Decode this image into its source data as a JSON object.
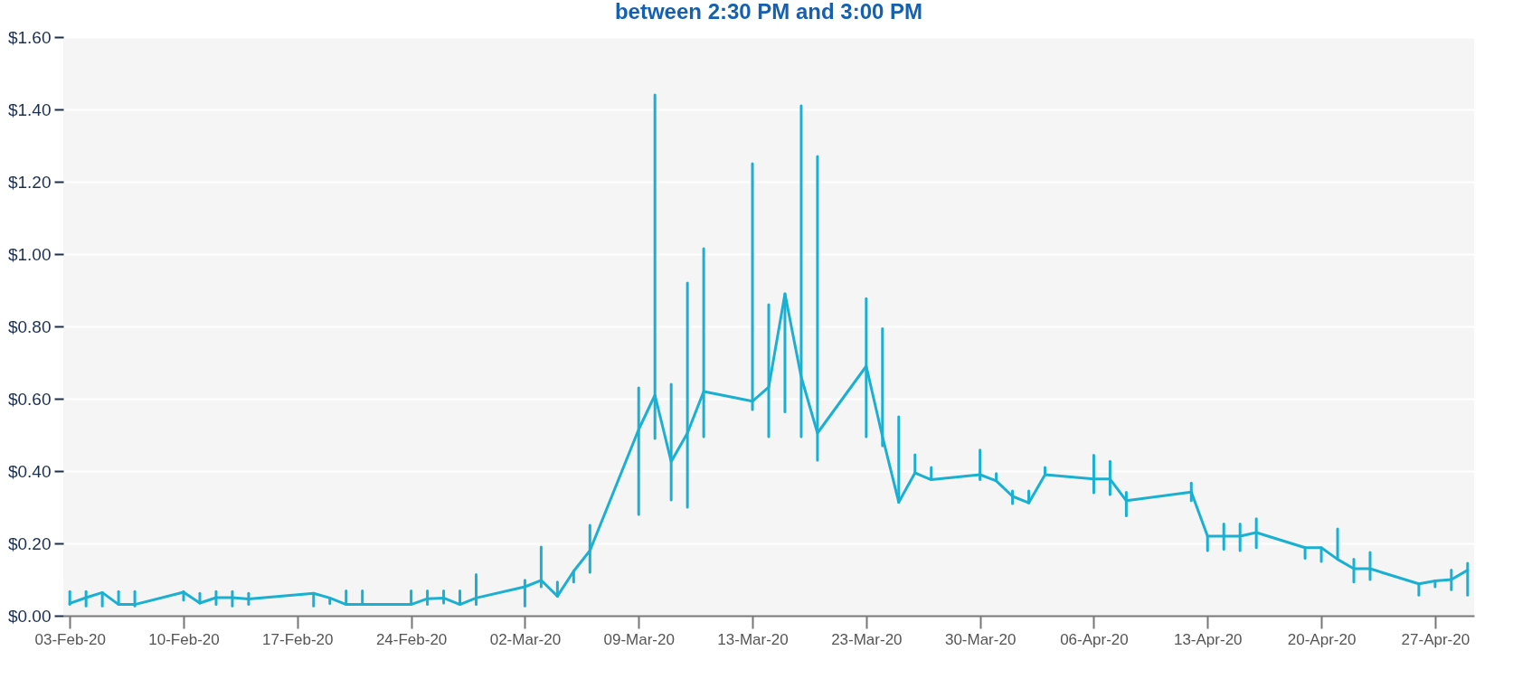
{
  "chart_data": {
    "type": "line",
    "title": "between 2:30 PM and 3:00 PM",
    "categories": [
      "03-Feb-20",
      null,
      null,
      null,
      null,
      null,
      null,
      "10-Feb-20",
      null,
      null,
      null,
      null,
      null,
      null,
      "17-Feb-20",
      null,
      null,
      null,
      null,
      null,
      null,
      "24-Feb-20",
      null,
      null,
      null,
      null,
      null,
      null,
      "02-Mar-20",
      null,
      null,
      null,
      null,
      null,
      null,
      "09-Mar-20",
      null,
      null,
      null,
      null,
      null,
      null,
      "13-Mar-20",
      null,
      null,
      null,
      null,
      null,
      null,
      "23-Mar-20",
      null,
      null,
      null,
      null,
      null,
      null,
      "30-Mar-20",
      null,
      null,
      null,
      null,
      null,
      null,
      "06-Apr-20",
      null,
      null,
      null,
      null,
      null,
      null,
      "13-Apr-20",
      null,
      null,
      null,
      null,
      null,
      null,
      "20-Apr-20",
      null,
      null,
      null,
      null,
      null,
      null,
      "27-Apr-20",
      null,
      null
    ],
    "series": [
      {
        "color": "#1ab0d2",
        "values": [
          0.034,
          0.05,
          0.064,
          0.031,
          0.031,
          null,
          null,
          0.065,
          0.035,
          0.05,
          0.05,
          0.046,
          null,
          null,
          null,
          0.062,
          0.049,
          0.031,
          0.031,
          null,
          null,
          0.031,
          0.047,
          0.049,
          0.031,
          0.049,
          null,
          null,
          0.08,
          0.098,
          0.054,
          0.123,
          0.18,
          null,
          null,
          0.515,
          0.61,
          0.426,
          0.505,
          0.62,
          null,
          null,
          0.593,
          0.632,
          0.89,
          0.66,
          0.505,
          null,
          null,
          0.69,
          0.495,
          0.314,
          0.395,
          0.376,
          null,
          null,
          0.39,
          0.373,
          0.33,
          0.312,
          0.39,
          null,
          null,
          0.378,
          0.378,
          0.318,
          null,
          null,
          null,
          0.342,
          0.22,
          0.22,
          0.22,
          0.23,
          null,
          null,
          0.188,
          0.188,
          0.156,
          0.13,
          0.13,
          null,
          null,
          0.088,
          0.096,
          0.1,
          0.126
        ],
        "errors": [
          [
            0.031,
            0.067
          ],
          [
            0.027,
            0.067
          ],
          [
            0.027,
            0.064
          ],
          [
            0.031,
            0.067
          ],
          [
            0.027,
            0.067
          ],
          null,
          null,
          [
            0.043,
            0.067
          ],
          [
            0.035,
            0.062
          ],
          [
            0.031,
            0.067
          ],
          [
            0.027,
            0.067
          ],
          [
            0.031,
            0.062
          ],
          null,
          null,
          null,
          [
            0.027,
            0.062
          ],
          [
            0.034,
            0.049
          ],
          [
            0.031,
            0.069
          ],
          [
            0.031,
            0.069
          ],
          null,
          null,
          [
            0.031,
            0.069
          ],
          [
            0.031,
            0.069
          ],
          [
            0.035,
            0.069
          ],
          [
            0.031,
            0.069
          ],
          [
            0.031,
            0.114
          ],
          null,
          null,
          [
            0.027,
            0.098
          ],
          [
            0.08,
            0.19
          ],
          [
            0.054,
            0.093
          ],
          [
            0.093,
            0.123
          ],
          [
            0.12,
            0.25
          ],
          null,
          null,
          [
            0.28,
            0.63
          ],
          [
            0.49,
            1.44
          ],
          [
            0.32,
            0.64
          ],
          [
            0.3,
            0.92
          ],
          [
            0.495,
            1.015
          ],
          null,
          null,
          [
            0.57,
            1.25
          ],
          [
            0.495,
            0.86
          ],
          [
            0.564,
            0.89
          ],
          [
            0.495,
            1.41
          ],
          [
            0.43,
            1.27
          ],
          null,
          null,
          [
            0.495,
            0.877
          ],
          [
            0.47,
            0.794
          ],
          [
            0.314,
            0.55
          ],
          [
            0.395,
            0.445
          ],
          [
            0.376,
            0.41
          ],
          null,
          null,
          [
            0.376,
            0.458
          ],
          [
            0.373,
            0.393
          ],
          [
            0.31,
            0.345
          ],
          [
            0.312,
            0.345
          ],
          [
            0.39,
            0.41
          ],
          null,
          null,
          [
            0.34,
            0.444
          ],
          [
            0.335,
            0.427
          ],
          [
            0.276,
            0.341
          ],
          null,
          null,
          null,
          [
            0.318,
            0.367
          ],
          [
            0.18,
            0.22
          ],
          [
            0.184,
            0.254
          ],
          [
            0.18,
            0.254
          ],
          [
            0.188,
            0.268
          ],
          null,
          null,
          [
            0.159,
            0.188
          ],
          [
            0.15,
            0.188
          ],
          [
            0.156,
            0.24
          ],
          [
            0.093,
            0.156
          ],
          [
            0.1,
            0.175
          ],
          null,
          null,
          [
            0.057,
            0.088
          ],
          [
            0.08,
            0.096
          ],
          [
            0.072,
            0.126
          ],
          [
            0.057,
            0.145
          ]
        ]
      }
    ],
    "ylim": [
      0,
      1.6
    ],
    "yticks": [
      {
        "value": 0,
        "label": "$0.00"
      },
      {
        "value": 0.2,
        "label": "$0.20"
      },
      {
        "value": 0.4,
        "label": "$0.40"
      },
      {
        "value": 0.6,
        "label": "$0.60"
      },
      {
        "value": 0.8,
        "label": "$0.80"
      },
      {
        "value": 1,
        "label": "$1.00"
      },
      {
        "value": 1.2,
        "label": "$1.20"
      },
      {
        "value": 1.4,
        "label": "$1.40"
      },
      {
        "value": 1.6,
        "label": "$1.60"
      }
    ],
    "grid": "y",
    "legend": false,
    "marker": "none",
    "line_style": "solid"
  }
}
